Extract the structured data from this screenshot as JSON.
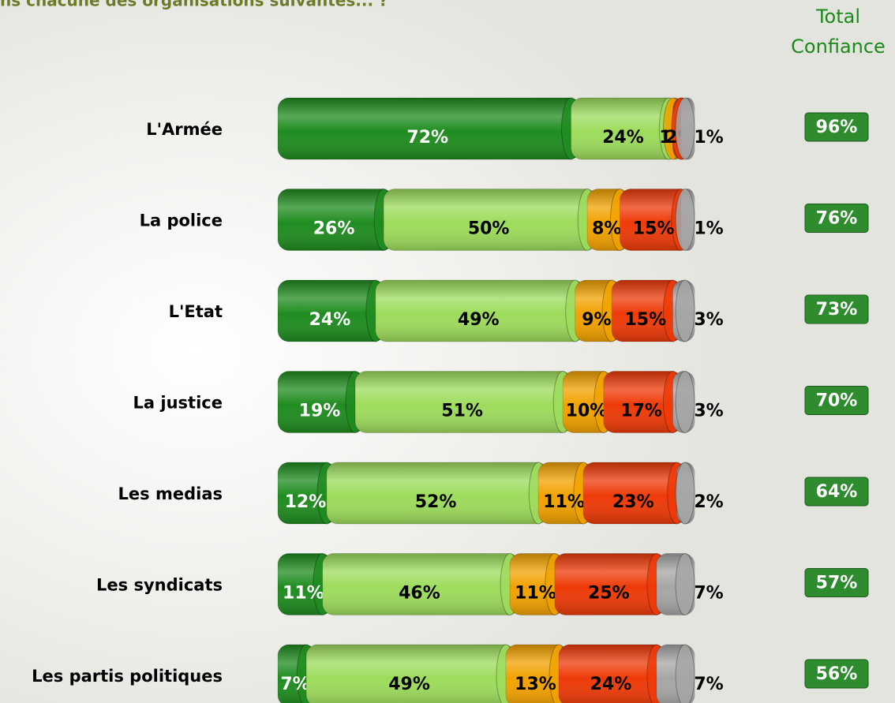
{
  "chart_data": {
    "type": "stacked-barh",
    "title": "ns chacune des organisations suivantes... ?",
    "categories": [
      "L'Armée",
      "La police",
      "L'Etat",
      "La justice",
      "Les medias",
      "Les syndicats",
      "Les partis politiques"
    ],
    "xlim": [
      0,
      100
    ],
    "series": [
      {
        "color": "#1f8c1f",
        "label_color": "#ffffff",
        "values": [
          72,
          26,
          24,
          19,
          12,
          11,
          7
        ],
        "value_labels": [
          "72%",
          "26%",
          "24%",
          "19%",
          "12%",
          "11%",
          "7%"
        ]
      },
      {
        "color": "#9ddc5c",
        "label_color": "#000000",
        "values": [
          24,
          50,
          49,
          51,
          52,
          46,
          49
        ],
        "value_labels": [
          "24%",
          "50%",
          "49%",
          "51%",
          "52%",
          "46%",
          "49%"
        ]
      },
      {
        "color": "#f2a200",
        "label_color": "#000000",
        "values": [
          1,
          8,
          9,
          10,
          11,
          11,
          13
        ],
        "value_labels": [
          "1%",
          "8%",
          "9%",
          "10%",
          "11%",
          "11%",
          "13%"
        ]
      },
      {
        "color": "#ee3a08",
        "label_color": "#000000",
        "values": [
          2,
          15,
          15,
          17,
          23,
          25,
          24
        ],
        "value_labels": [
          "2%",
          "15%",
          "15%",
          "17%",
          "23%",
          "25%",
          "24%"
        ]
      },
      {
        "color": "#a6a6a6",
        "label_color": "#000000",
        "values": [
          1,
          1,
          3,
          3,
          2,
          7,
          7
        ],
        "value_labels": [
          "1%",
          "1%",
          "3%",
          "3%",
          "2%",
          "7%",
          "7%"
        ]
      }
    ],
    "total": {
      "title": [
        "Total",
        "Confiance"
      ],
      "color": "#2e8b2e",
      "values": [
        96,
        76,
        73,
        70,
        64,
        57,
        56
      ],
      "value_labels": [
        "96%",
        "76%",
        "73%",
        "70%",
        "64%",
        "57%",
        "56%"
      ]
    }
  }
}
